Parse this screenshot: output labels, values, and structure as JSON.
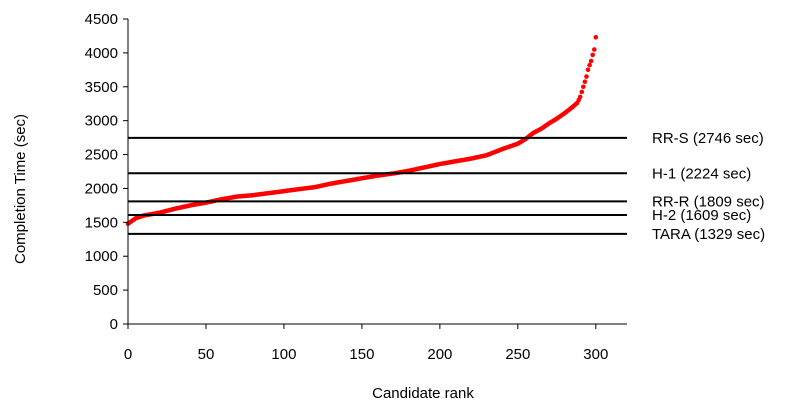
{
  "chart_data": {
    "type": "scatter",
    "xlabel": "Candidate rank",
    "ylabel": "Completion Time (sec)",
    "xlim": [
      0,
      320
    ],
    "ylim": [
      0,
      4500
    ],
    "xticks": [
      0,
      50,
      100,
      150,
      200,
      250,
      300
    ],
    "yticks": [
      0,
      500,
      1000,
      1500,
      2000,
      2500,
      3000,
      3500,
      4000,
      4500
    ],
    "grid": false,
    "point_color": "#ff0000",
    "line_color": "#000000",
    "series": [
      {
        "x": [
          0,
          5,
          10,
          20,
          30,
          40,
          50,
          60,
          70,
          80,
          90,
          100,
          110,
          120,
          130,
          140,
          150,
          160,
          170,
          180,
          190,
          200,
          210,
          220,
          230,
          240,
          250,
          255,
          260,
          265,
          270,
          275,
          280,
          285,
          288,
          290,
          292,
          294,
          295,
          296,
          297,
          298,
          299,
          300
        ],
        "y": [
          1480,
          1560,
          1600,
          1640,
          1700,
          1750,
          1790,
          1840,
          1880,
          1900,
          1930,
          1960,
          1990,
          2020,
          2070,
          2110,
          2150,
          2190,
          2220,
          2260,
          2310,
          2360,
          2400,
          2440,
          2490,
          2580,
          2660,
          2730,
          2820,
          2880,
          2960,
          3030,
          3110,
          3200,
          3260,
          3350,
          3500,
          3650,
          3750,
          3820,
          3880,
          3970,
          4050,
          4230
        ]
      }
    ],
    "reference_lines": [
      {
        "label": "RR-S (2746 sec)",
        "value": 2746
      },
      {
        "label": "H-1 (2224 sec)",
        "value": 2224
      },
      {
        "label": "RR-R (1809 sec)",
        "value": 1809
      },
      {
        "label": "H-2 (1609 sec)",
        "value": 1609
      },
      {
        "label": "TARA (1329 sec)",
        "value": 1329
      }
    ]
  }
}
